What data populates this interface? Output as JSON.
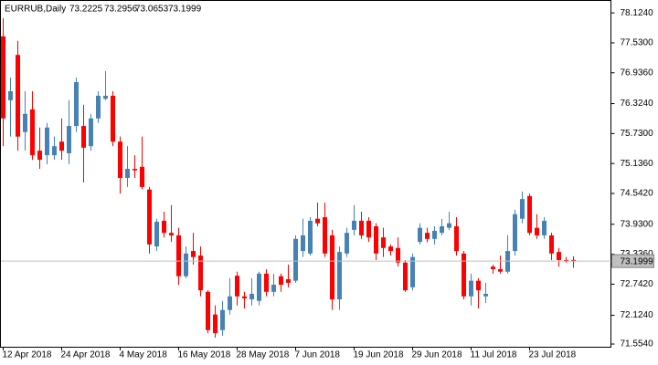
{
  "chart_data": {
    "type": "candlestick",
    "title": "EURRUB,Daily",
    "categories": [
      "12 Apr 2018",
      null,
      null,
      null,
      null,
      null,
      null,
      null,
      "24 Apr 2018",
      null,
      null,
      null,
      null,
      null,
      null,
      null,
      "4 May 2018",
      null,
      null,
      null,
      null,
      null,
      null,
      null,
      "16 May 2018",
      null,
      null,
      null,
      null,
      null,
      null,
      null,
      "28 May 2018",
      null,
      null,
      null,
      null,
      null,
      null,
      null,
      "7 Jun 2018",
      null,
      null,
      null,
      null,
      null,
      null,
      null,
      "19 Jun 2018",
      null,
      null,
      null,
      null,
      null,
      null,
      null,
      "29 Jun 2018",
      null,
      null,
      null,
      null,
      null,
      null,
      null,
      "11 Jul 2018",
      null,
      null,
      null,
      null,
      null,
      null,
      null,
      "23 Jul 2018",
      null,
      null,
      null,
      null,
      null,
      null
    ],
    "open": [
      77.66,
      76.39,
      77.29,
      75.76,
      76.21,
      75.39,
      75.3,
      75.3,
      75.57,
      75.34,
      75.88,
      75.88,
      75.48,
      76.03,
      76.42,
      76.48,
      75.57,
      74.85,
      75.03,
      75.07,
      74.62,
      73.49,
      74.0,
      73.76,
      73.71,
      72.9,
      73.4,
      73.31,
      72.59,
      72.14,
      71.83,
      72.23,
      72.91,
      72.5,
      72.44,
      72.41,
      72.95,
      72.59,
      72.9,
      72.84,
      72.81,
      73.4,
      73.35,
      74.04,
      74.07,
      73.71,
      72.44,
      73.35,
      73.82,
      74.0,
      74.0,
      73.89,
      73.67,
      73.49,
      73.46,
      73.17,
      72.68,
      73.58,
      73.76,
      73.64,
      73.76,
      73.86,
      73.89,
      73.35,
      72.5,
      72.81,
      72.5,
      73.09,
      73.04,
      72.99,
      73.4,
      74.04,
      74.49,
      73.86,
      73.71,
      73.71,
      73.38,
      73.22,
      73.2225
    ],
    "high": [
      78.02,
      76.84,
      77.57,
      76.57,
      76.57,
      75.85,
      75.94,
      75.67,
      76.03,
      76.39,
      76.84,
      76.3,
      76.12,
      76.57,
      76.97,
      76.57,
      75.67,
      75.48,
      75.3,
      75.67,
      74.67,
      74.04,
      74.18,
      74.31,
      73.86,
      73.49,
      73.76,
      73.49,
      72.62,
      72.32,
      72.41,
      72.86,
      72.99,
      72.59,
      72.86,
      72.99,
      73.04,
      72.95,
      72.95,
      73.13,
      73.71,
      74.04,
      74.07,
      74.36,
      74.36,
      73.82,
      73.49,
      73.86,
      74.31,
      74.18,
      74.07,
      73.95,
      73.86,
      73.53,
      73.67,
      73.22,
      73.35,
      73.95,
      73.86,
      73.89,
      74.04,
      74.18,
      74.07,
      73.4,
      72.95,
      72.86,
      72.77,
      73.13,
      73.31,
      73.71,
      74.22,
      74.58,
      74.54,
      74.13,
      74.07,
      73.76,
      73.46,
      73.28,
      73.2956
    ],
    "low": [
      75.48,
      75.67,
      75.39,
      75.39,
      75.21,
      75.03,
      75.12,
      75.21,
      75.21,
      75.12,
      75.76,
      74.76,
      75.39,
      75.94,
      76.39,
      75.48,
      74.54,
      74.67,
      74.85,
      74.62,
      73.35,
      73.4,
      73.67,
      73.58,
      72.73,
      72.86,
      73.13,
      72.5,
      71.77,
      71.68,
      71.72,
      72.14,
      72.32,
      72.26,
      72.32,
      72.32,
      72.5,
      72.5,
      72.59,
      72.68,
      72.77,
      73.28,
      73.31,
      73.89,
      73.28,
      72.23,
      72.23,
      73.28,
      73.71,
      73.64,
      73.58,
      73.22,
      73.28,
      73.31,
      73.09,
      72.59,
      72.62,
      73.53,
      73.57,
      73.53,
      73.71,
      73.82,
      73.31,
      72.44,
      72.32,
      72.26,
      72.37,
      72.95,
      72.95,
      72.95,
      73.31,
      73.95,
      73.71,
      73.64,
      73.64,
      73.22,
      73.09,
      73.17,
      73.0653
    ],
    "close": [
      76.03,
      76.57,
      75.67,
      76.12,
      75.3,
      75.21,
      75.85,
      75.48,
      75.39,
      75.88,
      76.75,
      75.45,
      76.03,
      76.48,
      76.48,
      75.57,
      74.85,
      75.03,
      75.0,
      74.67,
      73.53,
      73.98,
      73.76,
      73.71,
      72.9,
      73.35,
      73.28,
      72.62,
      71.83,
      71.77,
      72.23,
      72.5,
      72.5,
      72.46,
      72.55,
      72.95,
      72.59,
      72.73,
      72.73,
      72.77,
      73.64,
      73.71,
      74.0,
      73.95,
      73.35,
      72.44,
      73.38,
      73.76,
      74.0,
      73.71,
      73.67,
      73.35,
      73.46,
      73.4,
      73.17,
      72.62,
      73.28,
      73.86,
      73.64,
      73.8,
      73.89,
      73.95,
      73.4,
      72.5,
      72.81,
      72.62,
      72.55,
      73.04,
      72.99,
      73.4,
      74.13,
      74.43,
      73.76,
      73.71,
      74.0,
      73.35,
      73.22,
      73.19,
      73.1999
    ],
    "up_color": "#4682b4",
    "down_color": "#ff0000",
    "price_line_color": "#c0c0c0",
    "ylim": [
      71.5,
      78.38
    ],
    "yticks": [
      {
        "value": 78.124,
        "label": "78.1240"
      },
      {
        "value": 77.53,
        "label": "77.5300"
      },
      {
        "value": 76.936,
        "label": "76.9360"
      },
      {
        "value": 76.324,
        "label": "76.3240"
      },
      {
        "value": 75.73,
        "label": "75.7300"
      },
      {
        "value": 75.136,
        "label": "75.1360"
      },
      {
        "value": 74.542,
        "label": "74.5420"
      },
      {
        "value": 73.93,
        "label": "73.9300"
      },
      {
        "value": 73.336,
        "label": "73.3360"
      },
      {
        "value": 72.742,
        "label": "72.7420"
      },
      {
        "value": 72.124,
        "label": "72.1240"
      },
      {
        "value": 71.554,
        "label": "71.5540"
      }
    ]
  }
}
